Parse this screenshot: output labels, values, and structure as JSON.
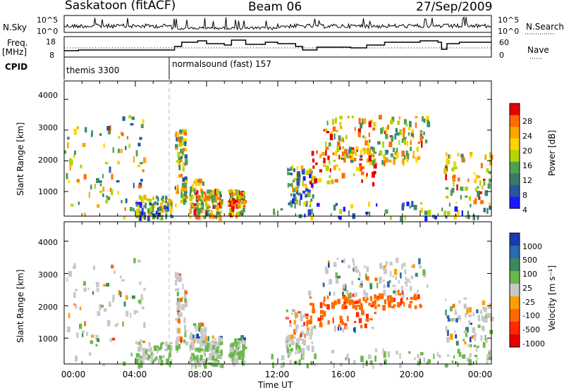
{
  "header": {
    "station": "Saskatoon (fitACF)",
    "beam": "Beam 06",
    "date": "27/Sep/2009"
  },
  "strip_labels": {
    "nsky": "N.Sky",
    "nsky_hi": "10^5",
    "nsky_lo": "10^0",
    "nsearch": "N.Search",
    "nsearch_hi": "10^5",
    "nsearch_lo": "10^0",
    "freq": "Freq.",
    "freq_unit": "[MHz]",
    "freq_hi": "18",
    "freq_lo": "8",
    "nave": "Nave",
    "nave_hi": "60",
    "nave_lo": "0",
    "cpid": "CPID",
    "cpid_a": "themis 3300",
    "cpid_b": "normalsound (fast) 157"
  },
  "chart_data": [
    {
      "type": "heatmap",
      "panel": "power",
      "ylabel": "Slant Range [km]",
      "yticks": [
        "4000",
        "3000",
        "2000",
        "1000"
      ],
      "ylim": [
        200,
        4600
      ],
      "xlim_hours": [
        0,
        24
      ],
      "colorbar_label": "Power [dB]",
      "colorbar_ticks": [
        "28",
        "24",
        "20",
        "16",
        "12",
        "8",
        "4"
      ],
      "colorbar_colors": [
        "#e60000",
        "#ff6a00",
        "#ffa500",
        "#ffd400",
        "#b5d400",
        "#4fa04f",
        "#3a7a6a",
        "#2a55a0",
        "#1a1aff"
      ]
    },
    {
      "type": "heatmap",
      "panel": "velocity",
      "ylabel": "Slant Range [km]",
      "yticks": [
        "4000",
        "3000",
        "2000",
        "1000"
      ],
      "ylim": [
        200,
        4600
      ],
      "xlim_hours": [
        0,
        24
      ],
      "colorbar_label": "Velocity [m s⁻¹]",
      "colorbar_ticks": [
        "1000",
        "500",
        "100",
        "25",
        "-25",
        "-100",
        "-500",
        "-1000"
      ],
      "colorbar_colors": [
        "#1a3ab0",
        "#2a6ab0",
        "#3a8a5a",
        "#6ab84a",
        "#c8c8c8",
        "#ffa000",
        "#ff6a00",
        "#ff2a00",
        "#e60000"
      ]
    }
  ],
  "xaxis": {
    "ticks": [
      "00:00",
      "04:00",
      "08:00",
      "12:00",
      "16:00",
      "20:00",
      "00:00"
    ],
    "label": "Time UT"
  }
}
